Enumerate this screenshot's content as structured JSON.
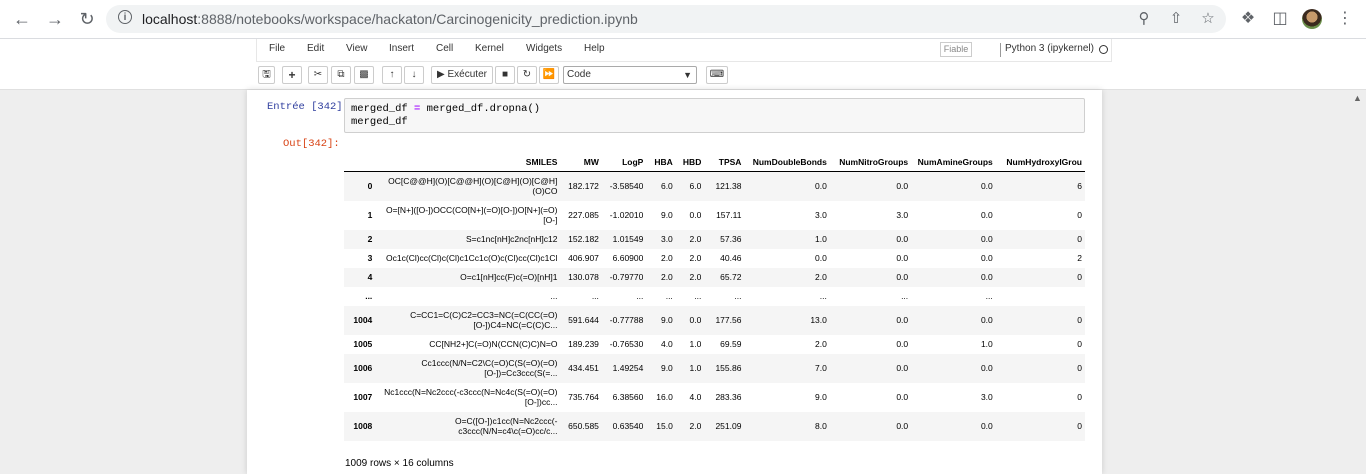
{
  "browser": {
    "url_host": "localhost",
    "url_path": ":8888/notebooks/workspace/hackaton/Carcinogenicity_prediction.ipynb"
  },
  "menubar": {
    "items": [
      "File",
      "Edit",
      "View",
      "Insert",
      "Cell",
      "Kernel",
      "Widgets",
      "Help"
    ],
    "trusted": "Fiable",
    "kernel": "Python 3 (ipykernel)"
  },
  "toolbar": {
    "run_label": "Exécuter",
    "cell_type": "Code"
  },
  "cell": {
    "in_prompt": "Entrée [342]:",
    "out_prompt": "Out[342]:",
    "code_line1_a": "merged_df ",
    "code_line1_op": "=",
    "code_line1_b": " merged_df.dropna()",
    "code_line2": "merged_df"
  },
  "dataframe": {
    "columns": [
      "",
      "SMILES",
      "MW",
      "LogP",
      "HBA",
      "HBD",
      "TPSA",
      "NumDoubleBonds",
      "NumNitroGroups",
      "NumAmineGroups",
      "NumHydroxylGrou"
    ],
    "rows": [
      [
        "0",
        "OC[C@@H](O)[C@@H](O)[C@H](O)[C@H](O)CO",
        "182.172",
        "-3.58540",
        "6.0",
        "6.0",
        "121.38",
        "0.0",
        "0.0",
        "0.0",
        "6"
      ],
      [
        "1",
        "O=[N+]([O-])OCC(CO[N+](=O)[O-])O[N+](=O)[O-]",
        "227.085",
        "-1.02010",
        "9.0",
        "0.0",
        "157.11",
        "3.0",
        "3.0",
        "0.0",
        "0"
      ],
      [
        "2",
        "S=c1nc[nH]c2nc[nH]c12",
        "152.182",
        "1.01549",
        "3.0",
        "2.0",
        "57.36",
        "1.0",
        "0.0",
        "0.0",
        "0"
      ],
      [
        "3",
        "Oc1c(Cl)cc(Cl)c(Cl)c1Cc1c(O)c(Cl)cc(Cl)c1Cl",
        "406.907",
        "6.60900",
        "2.0",
        "2.0",
        "40.46",
        "0.0",
        "0.0",
        "0.0",
        "2"
      ],
      [
        "4",
        "O=c1[nH]cc(F)c(=O)[nH]1",
        "130.078",
        "-0.79770",
        "2.0",
        "2.0",
        "65.72",
        "2.0",
        "0.0",
        "0.0",
        "0"
      ],
      [
        "...",
        "...",
        "...",
        "...",
        "...",
        "...",
        "...",
        "...",
        "...",
        "...",
        ""
      ],
      [
        "1004",
        "C=CC1=C(C)C2=CC3=NC(=C(CC(=O)[O-])C4=NC(=C(C)C...",
        "591.644",
        "-0.77788",
        "9.0",
        "0.0",
        "177.56",
        "13.0",
        "0.0",
        "0.0",
        "0"
      ],
      [
        "1005",
        "CC[NH2+]C(=O)N(CCN(C)C)N=O",
        "189.239",
        "-0.76530",
        "4.0",
        "1.0",
        "69.59",
        "2.0",
        "0.0",
        "1.0",
        "0"
      ],
      [
        "1006",
        "Cc1ccc(N/N=C2\\C(=O)C(S(=O)(=O)[O-])=Cc3ccc(S(=...",
        "434.451",
        "1.49254",
        "9.0",
        "1.0",
        "155.86",
        "7.0",
        "0.0",
        "0.0",
        "0"
      ],
      [
        "1007",
        "Nc1ccc(N=Nc2ccc(-c3ccc(N=Nc4c(S(=O)(=O)[O-])cc...",
        "735.764",
        "6.38560",
        "16.0",
        "4.0",
        "283.36",
        "9.0",
        "0.0",
        "3.0",
        "0"
      ],
      [
        "1008",
        "O=C([O-])c1cc(N=Nc2ccc(-c3ccc(N/N=c4\\c(=O)cc/c...",
        "650.585",
        "0.63540",
        "15.0",
        "2.0",
        "251.09",
        "8.0",
        "0.0",
        "0.0",
        "0"
      ]
    ],
    "shape": "1009 rows × 16 columns"
  }
}
